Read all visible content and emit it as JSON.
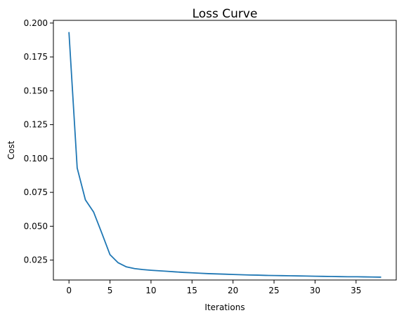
{
  "chart_data": {
    "type": "line",
    "title": "Loss Curve",
    "xlabel": "Iterations",
    "ylabel": "Cost",
    "xlim": [
      -1.9,
      39.9
    ],
    "ylim": [
      0.0103,
      0.202
    ],
    "xticks": [
      0,
      5,
      10,
      15,
      20,
      25,
      30,
      35
    ],
    "yticks": [
      0.025,
      0.05,
      0.075,
      0.1,
      0.125,
      0.15,
      0.175,
      0.2
    ],
    "ytick_labels": [
      "0.025",
      "0.050",
      "0.075",
      "0.100",
      "0.125",
      "0.150",
      "0.175",
      "0.200"
    ],
    "grid": false,
    "legend": "none",
    "series": [
      {
        "color": "#1f77b4",
        "x": [
          0,
          1,
          2,
          3,
          4,
          5,
          6,
          7,
          8,
          9,
          10,
          11,
          12,
          13,
          14,
          15,
          16,
          17,
          18,
          19,
          20,
          21,
          22,
          23,
          24,
          25,
          26,
          27,
          28,
          29,
          30,
          31,
          32,
          33,
          34,
          35,
          36,
          37,
          38
        ],
        "values": [
          0.193,
          0.093,
          0.0695,
          0.0605,
          0.045,
          0.029,
          0.023,
          0.02,
          0.0187,
          0.018,
          0.0175,
          0.0171,
          0.0167,
          0.0163,
          0.0159,
          0.0156,
          0.0153,
          0.015,
          0.0148,
          0.0146,
          0.0144,
          0.0142,
          0.014,
          0.0139,
          0.0137,
          0.0136,
          0.0135,
          0.0134,
          0.0133,
          0.0132,
          0.0131,
          0.013,
          0.0129,
          0.0128,
          0.0127,
          0.0127,
          0.0126,
          0.0125,
          0.0124
        ]
      }
    ]
  }
}
